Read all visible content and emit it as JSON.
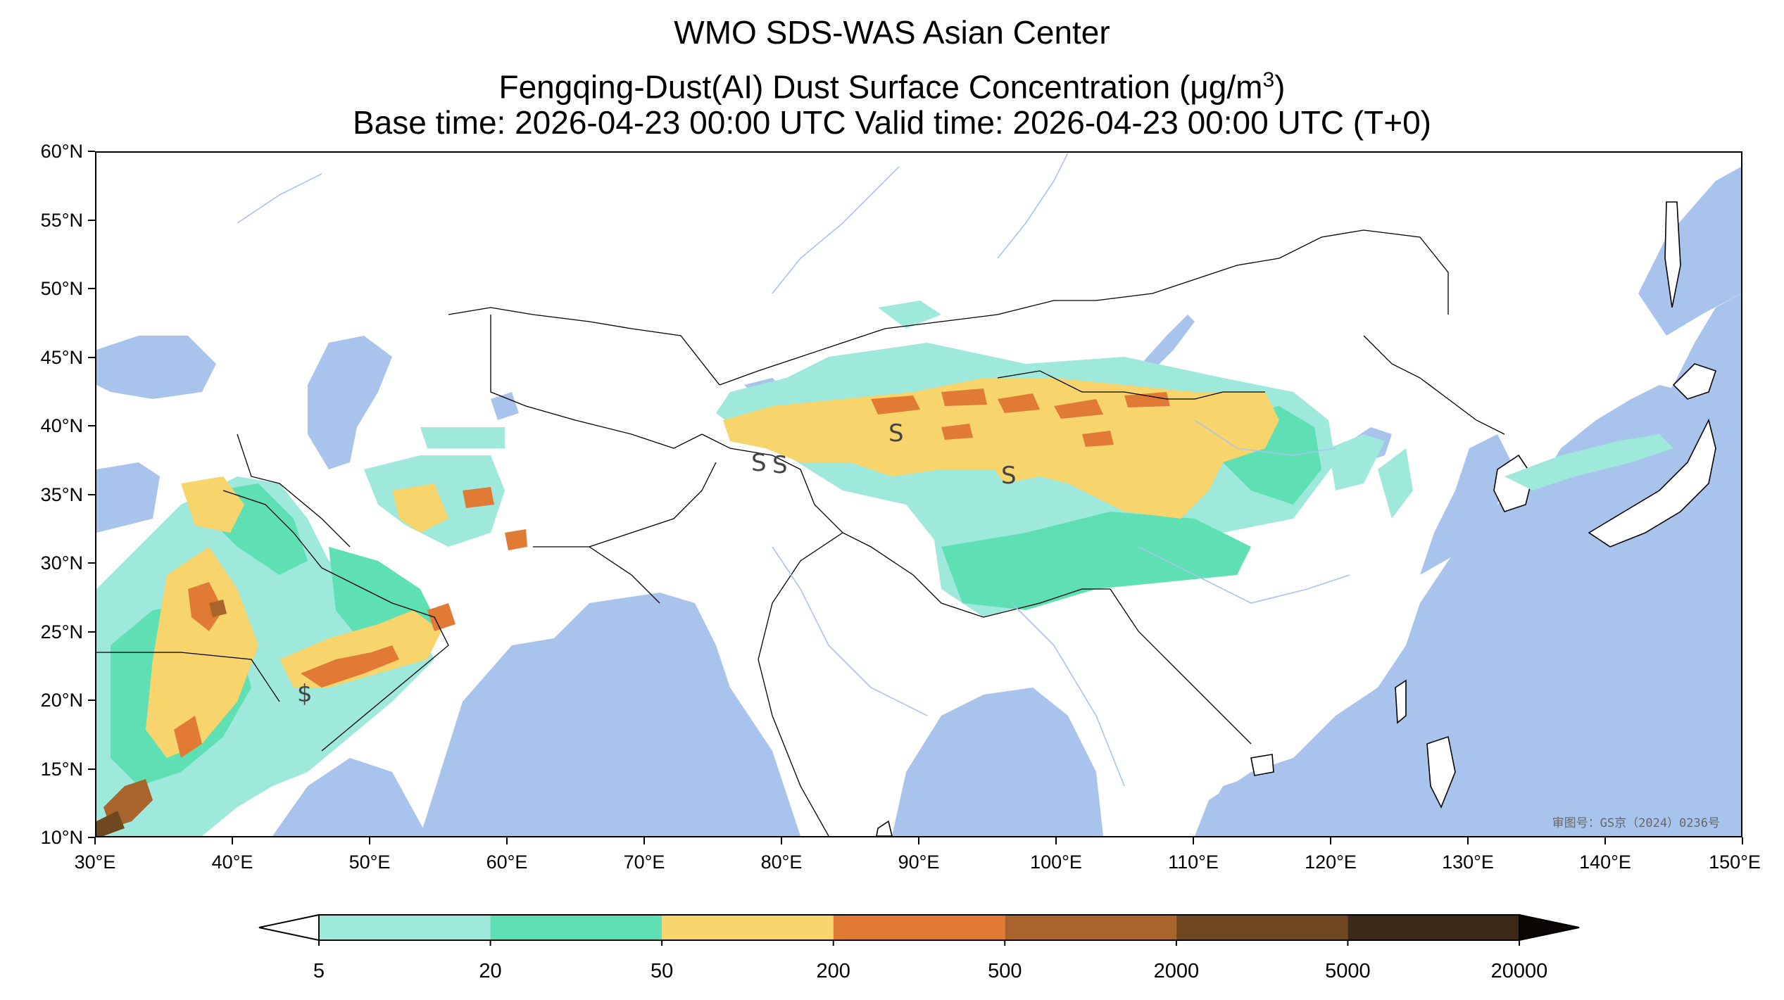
{
  "header": {
    "line1": "WMO SDS-WAS Asian Center",
    "line2_prefix": "Fengqing-Dust(AI) Dust Surface Concentration (",
    "line2_unit_mu": "μ",
    "line2_unit_rest": "g/m",
    "line2_unit_exp": "3",
    "line2_suffix": ")",
    "line3": "Base time: 2026-04-23 00:00 UTC Valid time: 2026-04-23 00:00 UTC (T+0)"
  },
  "map": {
    "extent": {
      "lon": [
        30,
        150
      ],
      "lat": [
        10,
        60
      ]
    },
    "lat_ticks": [
      "60°N",
      "55°N",
      "50°N",
      "45°N",
      "40°N",
      "35°N",
      "30°N",
      "25°N",
      "20°N",
      "15°N",
      "10°N"
    ],
    "lat_values": [
      60,
      55,
      50,
      45,
      40,
      35,
      30,
      25,
      20,
      15,
      10
    ],
    "lon_ticks": [
      "30°E",
      "40°E",
      "50°E",
      "60°E",
      "70°E",
      "80°E",
      "90°E",
      "100°E",
      "110°E",
      "120°E",
      "130°E",
      "140°E",
      "150°E"
    ],
    "lon_values": [
      30,
      40,
      50,
      60,
      70,
      80,
      90,
      100,
      110,
      120,
      130,
      140,
      150
    ],
    "stamp": "审图号：GS京（2024）0236号",
    "ocean_color": "#a9c4ec",
    "land_color": "#ffffff",
    "storm_symbol": "S",
    "storm_symbol_alt": "$"
  },
  "colorbar": {
    "levels": [
      "5",
      "20",
      "50",
      "200",
      "500",
      "2000",
      "5000",
      "20000"
    ],
    "colors": [
      "#9fe8dc",
      "#5fe0b4",
      "#f8d46c",
      "#e07a34",
      "#a8642a",
      "#704820",
      "#3c2816"
    ],
    "extend": "both"
  }
}
